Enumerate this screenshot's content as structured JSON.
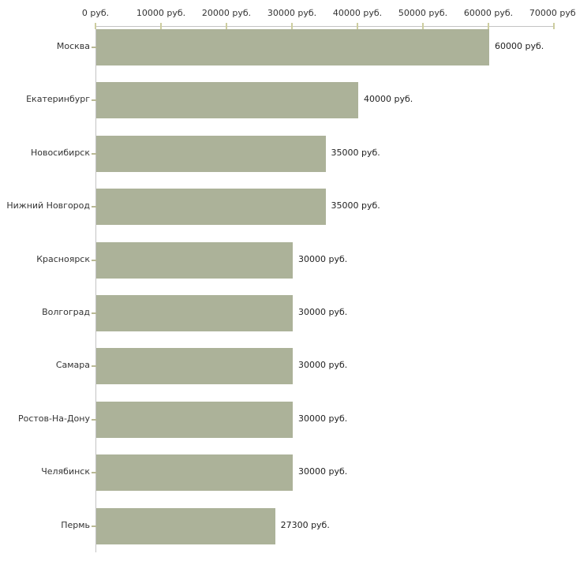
{
  "chart_data": {
    "type": "bar",
    "orientation": "horizontal",
    "title": "",
    "xlabel": "",
    "ylabel": "",
    "categories": [
      "Москва",
      "Екатеринбург",
      "Новосибирск",
      "Нижний Новгород",
      "Красноярск",
      "Волгоград",
      "Самара",
      "Ростов-На-Дону",
      "Челябинск",
      "Пермь"
    ],
    "values": [
      60000,
      40000,
      35000,
      35000,
      30000,
      30000,
      30000,
      30000,
      30000,
      27300
    ],
    "value_labels": [
      "60000 руб.",
      "40000 руб.",
      "35000 руб.",
      "35000 руб.",
      "30000 руб.",
      "30000 руб.",
      "30000 руб.",
      "30000 руб.",
      "30000 руб.",
      "27300 руб."
    ],
    "x_axis": {
      "min": 0,
      "max": 70000,
      "tick_step": 10000,
      "tick_labels": [
        "0 руб.",
        "10000 руб.",
        "20000 руб.",
        "30000 руб.",
        "40000 руб.",
        "50000 руб.",
        "60000 руб.",
        "70000 руб."
      ],
      "unit": "руб."
    },
    "legend": null,
    "grid": false,
    "colors": {
      "bar_fill": "#acb299",
      "axis_line": "#c3c3c3",
      "x_tick_mark": "#cdcd9f",
      "y_tick_mark": "#b9b995",
      "text": "#333333",
      "background": "#ffffff"
    }
  }
}
